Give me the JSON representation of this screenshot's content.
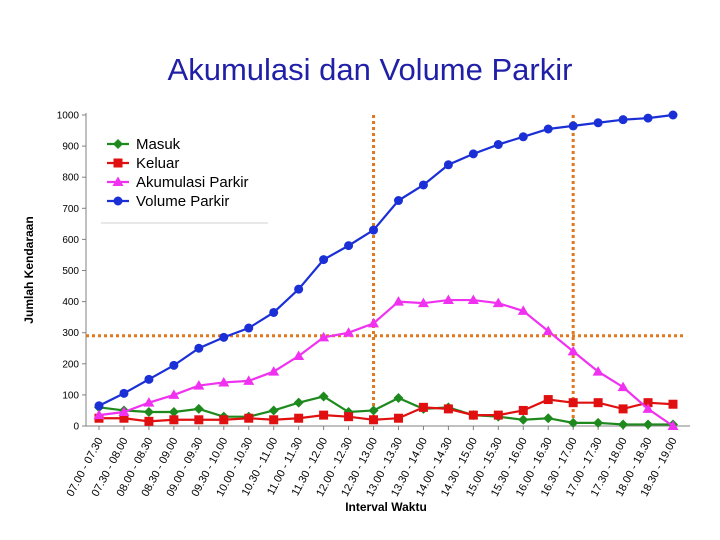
{
  "chart_data": {
    "type": "line",
    "title": "Akumulasi dan Volume Parkir",
    "xlabel": "Interval Waktu",
    "ylabel": "Jumlah Kendaraan",
    "ylim": [
      0,
      1000
    ],
    "yticks": [
      "0",
      "100",
      "200",
      "300",
      "400",
      "500",
      "600",
      "700",
      "800",
      "900",
      "1000"
    ],
    "grid": false,
    "legend_position": "top-left",
    "categories": [
      "07.00 - 07.30",
      "07.30 - 08.00",
      "08.00 - 08.30",
      "08.30 - 09.00",
      "09.00 - 09.30",
      "09.30 - 10.00",
      "10.00 - 10.30",
      "10.30 - 11.00",
      "11.00 - 11.30",
      "11.30 - 12.00",
      "12.00 - 12.30",
      "12.30 - 13.00",
      "13.00 - 13.30",
      "13.30 - 14.00",
      "14.00 - 14.30",
      "14.30 - 15.00",
      "15.00 - 15.30",
      "15.30 - 16.00",
      "16.00 - 16.30",
      "16.30 - 17.00",
      "17.00 - 17.30",
      "17.30 - 18.00",
      "18.00 - 18.30",
      "18.30 - 19.00"
    ],
    "series": [
      {
        "name": "Masuk",
        "color": "#1e8a1e",
        "marker": "diamond",
        "values": [
          60,
          50,
          45,
          45,
          55,
          30,
          30,
          50,
          75,
          95,
          45,
          50,
          90,
          55,
          60,
          35,
          30,
          20,
          25,
          10,
          10,
          5,
          5,
          5
        ]
      },
      {
        "name": "Keluar",
        "color": "#e01010",
        "marker": "square",
        "values": [
          25,
          25,
          15,
          20,
          20,
          20,
          25,
          20,
          25,
          35,
          30,
          20,
          25,
          60,
          55,
          35,
          35,
          50,
          85,
          75,
          75,
          55,
          75,
          70
        ]
      },
      {
        "name": "Akumulasi Parkir",
        "color": "#f032f0",
        "marker": "triangle",
        "values": [
          35,
          45,
          75,
          100,
          130,
          140,
          145,
          175,
          225,
          285,
          300,
          330,
          400,
          395,
          405,
          405,
          395,
          370,
          305,
          240,
          175,
          125,
          55,
          0
        ]
      },
      {
        "name": "Volume Parkir",
        "color": "#1a2fd6",
        "marker": "circle",
        "values": [
          65,
          105,
          150,
          195,
          250,
          285,
          315,
          365,
          440,
          535,
          580,
          630,
          725,
          775,
          840,
          875,
          905,
          930,
          955,
          965,
          975,
          985,
          990,
          1000
        ]
      }
    ],
    "reference_lines": {
      "color": "#e07820",
      "horizontal": [
        290
      ],
      "vertical_categories": [
        "12.30 - 13.00",
        "16.30 - 17.00"
      ]
    }
  }
}
